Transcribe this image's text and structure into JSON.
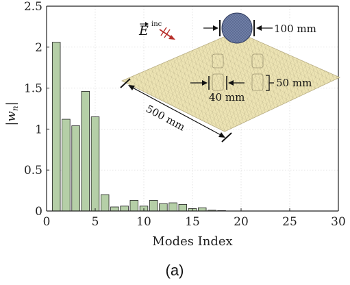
{
  "chart_data": {
    "type": "bar",
    "title": "",
    "xlabel": "Modes Index",
    "ylabel": "|w_n|",
    "ylabel_base": "|w",
    "ylabel_sub": "n",
    "ylabel_end": "|",
    "xlim": [
      0,
      30
    ],
    "ylim": [
      0,
      2.5
    ],
    "xticks": [
      0,
      5,
      10,
      15,
      20,
      25,
      30
    ],
    "yticks": [
      0,
      0.5,
      1,
      1.5,
      2,
      2.5
    ],
    "xtick_labels": [
      "0",
      "5",
      "10",
      "15",
      "20",
      "25",
      "30"
    ],
    "ytick_labels": [
      "0",
      "0.5",
      "1",
      "1.5",
      "2",
      "2.5"
    ],
    "grid": true,
    "bar_color": "#b5cfa7",
    "bar_edge_color": "#222222",
    "x": [
      1,
      2,
      3,
      4,
      5,
      6,
      7,
      8,
      9,
      10,
      11,
      12,
      13,
      14,
      15,
      16,
      17,
      18,
      19,
      20,
      21,
      22,
      23,
      24,
      25,
      26,
      27,
      28,
      29,
      30
    ],
    "values": [
      2.06,
      1.12,
      1.04,
      1.46,
      1.15,
      0.2,
      0.05,
      0.06,
      0.13,
      0.06,
      0.13,
      0.09,
      0.1,
      0.08,
      0.03,
      0.04,
      0.01,
      0.005,
      0.0,
      0.0,
      0.0,
      0.0,
      0.0,
      0.0,
      0.0,
      0.0,
      0.0,
      0.0,
      0.0,
      0.0
    ]
  },
  "inset": {
    "field_symbol": "E",
    "field_superscript": "inc",
    "sphere_diameter": "100 mm",
    "cylinder_height": "50 mm",
    "cylinder_diameter": "40 mm",
    "plate_size": "500 mm",
    "plate_color": "#ece3b3",
    "sphere_color": "#6f7ea6",
    "arrow_color": "#b8322d"
  },
  "caption": "(a)"
}
